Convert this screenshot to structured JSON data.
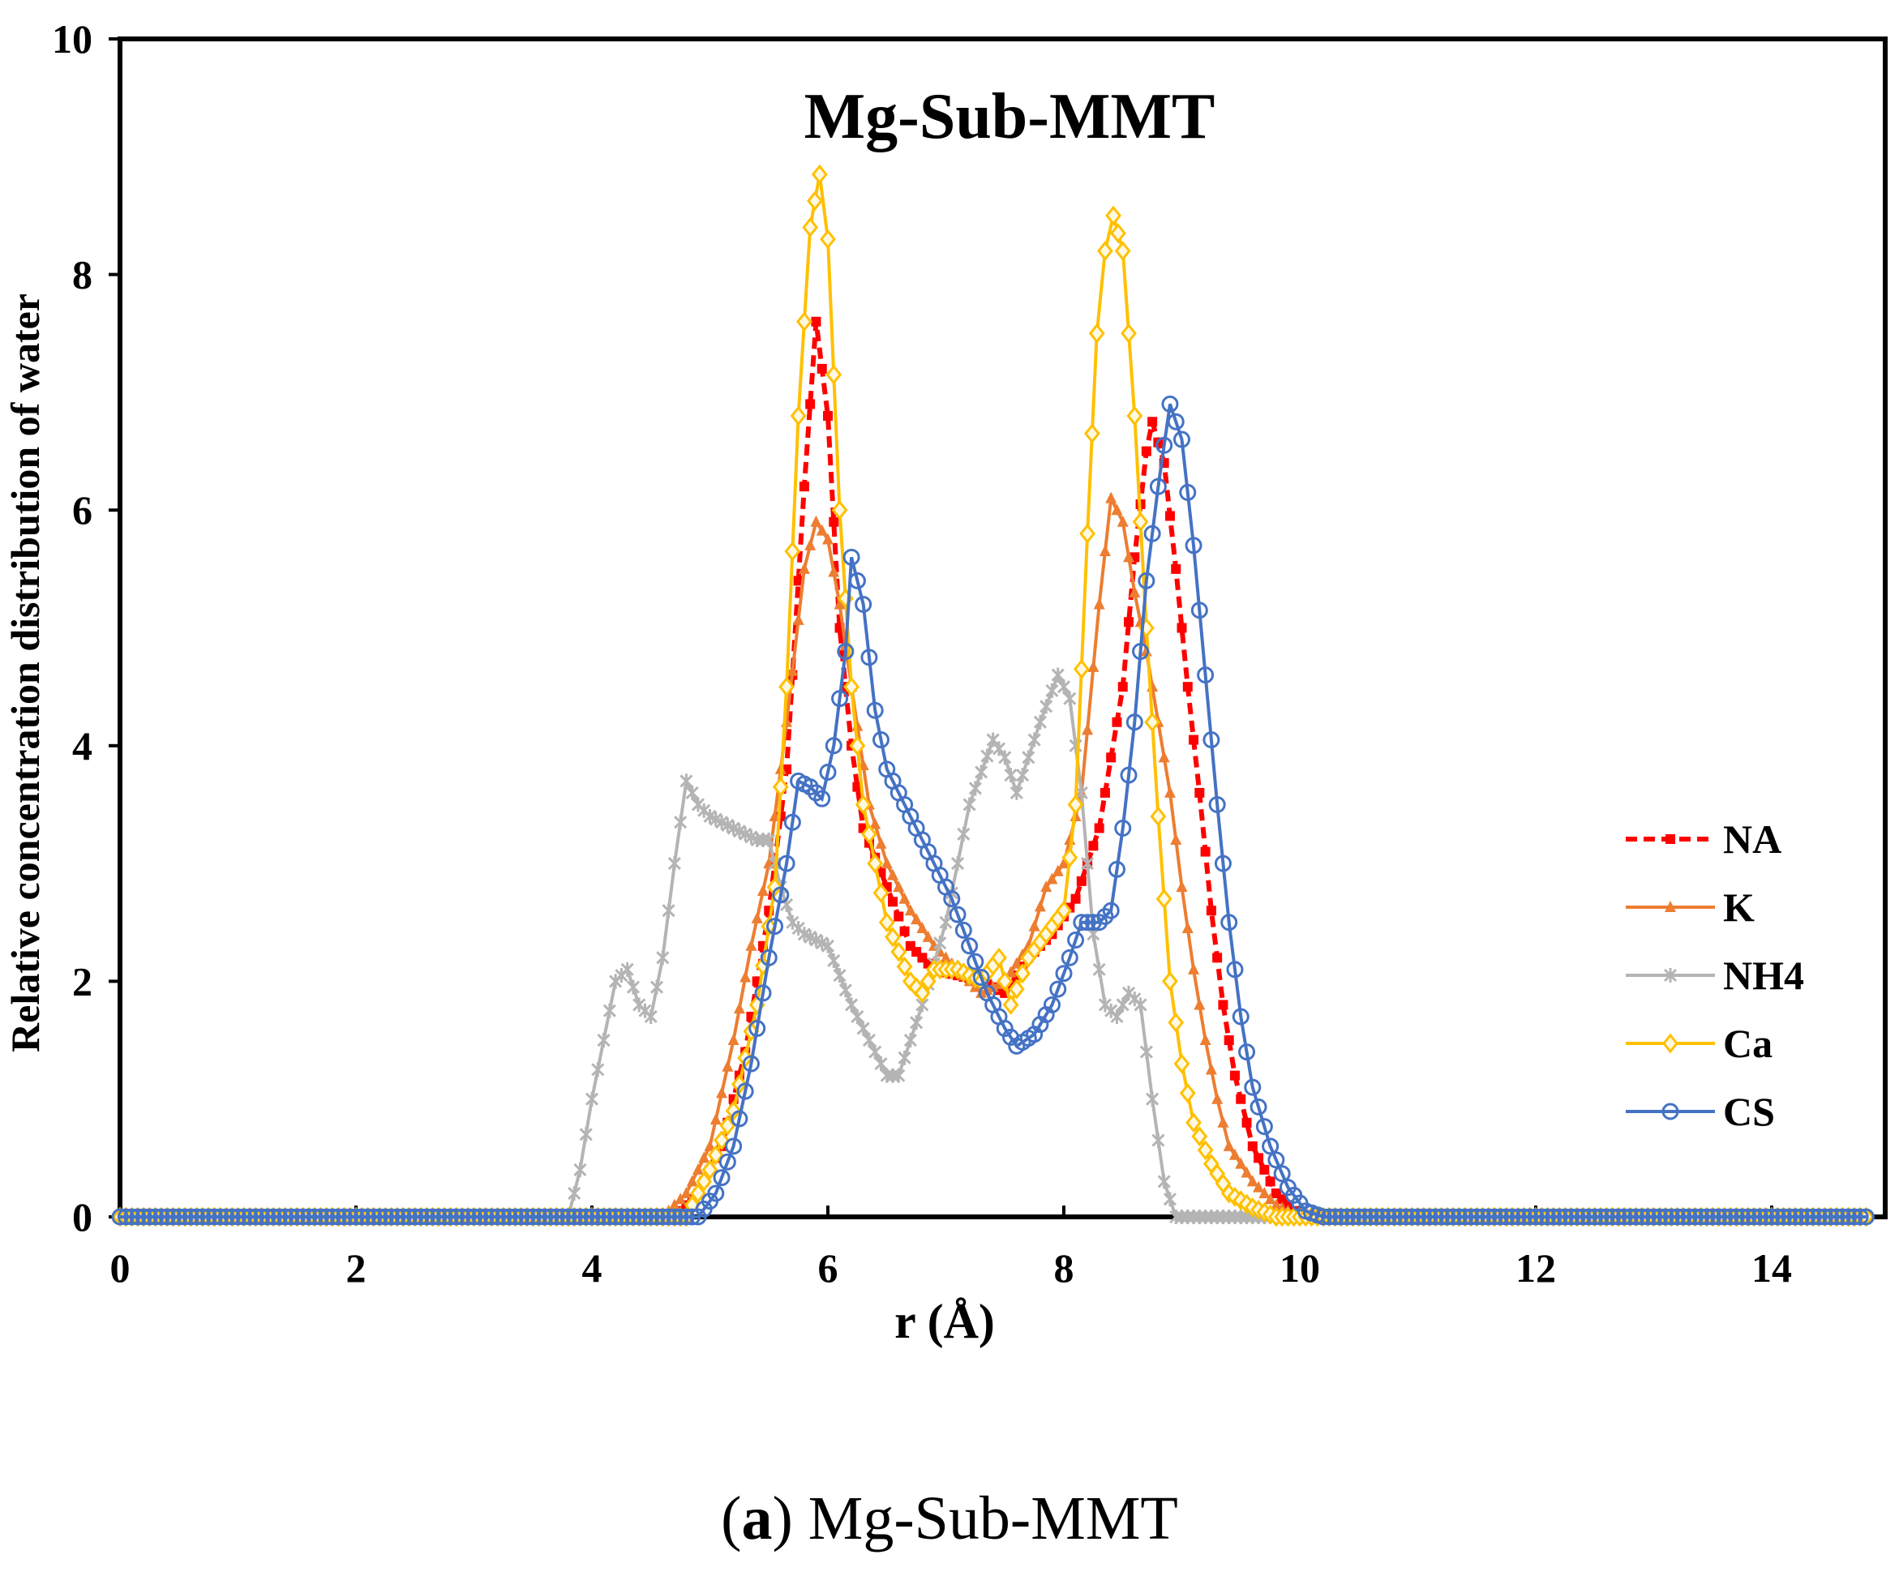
{
  "chart_data": {
    "type": "line",
    "title": "Mg-Sub-MMT",
    "xlabel": "r  (Å)",
    "ylabel": "Relative concentration distribution  of water",
    "xlim": [
      0,
      14.8
    ],
    "ylim": [
      0,
      10
    ],
    "xticks": [
      0,
      2,
      4,
      6,
      8,
      10,
      12,
      14
    ],
    "yticks": [
      0,
      2,
      4,
      6,
      8,
      10
    ],
    "grid": false,
    "legend_position": "right",
    "series": [
      {
        "name": "NA",
        "color": "#ff0000",
        "dash": true,
        "marker": "square",
        "points": [
          [
            0,
            0
          ],
          [
            4.7,
            0
          ],
          [
            4.9,
            0.2
          ],
          [
            5.1,
            0.6
          ],
          [
            5.3,
            1.4
          ],
          [
            5.5,
            2.6
          ],
          [
            5.65,
            3.8
          ],
          [
            5.8,
            6.2
          ],
          [
            5.9,
            7.6
          ],
          [
            6.0,
            6.8
          ],
          [
            6.1,
            5.0
          ],
          [
            6.2,
            4.0
          ],
          [
            6.3,
            3.3
          ],
          [
            6.5,
            2.8
          ],
          [
            6.7,
            2.3
          ],
          [
            6.9,
            2.1
          ],
          [
            7.1,
            2.05
          ],
          [
            7.3,
            2.0
          ],
          [
            7.5,
            1.9
          ],
          [
            7.7,
            2.2
          ],
          [
            7.9,
            2.4
          ],
          [
            8.1,
            2.7
          ],
          [
            8.3,
            3.3
          ],
          [
            8.5,
            4.5
          ],
          [
            8.6,
            5.6
          ],
          [
            8.7,
            6.5
          ],
          [
            8.75,
            6.75
          ],
          [
            8.85,
            6.4
          ],
          [
            8.95,
            5.5
          ],
          [
            9.05,
            4.5
          ],
          [
            9.15,
            3.6
          ],
          [
            9.25,
            2.6
          ],
          [
            9.35,
            1.8
          ],
          [
            9.45,
            1.2
          ],
          [
            9.6,
            0.6
          ],
          [
            9.8,
            0.2
          ],
          [
            10.0,
            0
          ],
          [
            14.8,
            0
          ]
        ]
      },
      {
        "name": "K",
        "color": "#ed7d31",
        "dash": false,
        "marker": "triangle",
        "points": [
          [
            0,
            0
          ],
          [
            4.6,
            0
          ],
          [
            4.8,
            0.2
          ],
          [
            5.0,
            0.6
          ],
          [
            5.2,
            1.5
          ],
          [
            5.35,
            2.3
          ],
          [
            5.5,
            3.0
          ],
          [
            5.65,
            4.2
          ],
          [
            5.8,
            5.5
          ],
          [
            5.9,
            5.9
          ],
          [
            6.0,
            5.75
          ],
          [
            6.1,
            5.2
          ],
          [
            6.2,
            4.5
          ],
          [
            6.35,
            3.5
          ],
          [
            6.5,
            3.0
          ],
          [
            6.7,
            2.6
          ],
          [
            6.9,
            2.3
          ],
          [
            7.1,
            2.1
          ],
          [
            7.3,
            1.9
          ],
          [
            7.5,
            2.0
          ],
          [
            7.7,
            2.3
          ],
          [
            7.85,
            2.8
          ],
          [
            8.0,
            3.0
          ],
          [
            8.15,
            3.6
          ],
          [
            8.3,
            5.2
          ],
          [
            8.4,
            6.1
          ],
          [
            8.5,
            5.9
          ],
          [
            8.6,
            5.3
          ],
          [
            8.7,
            4.8
          ],
          [
            8.8,
            4.2
          ],
          [
            8.9,
            3.6
          ],
          [
            9.0,
            2.8
          ],
          [
            9.1,
            2.1
          ],
          [
            9.2,
            1.5
          ],
          [
            9.3,
            1.0
          ],
          [
            9.4,
            0.6
          ],
          [
            9.6,
            0.3
          ],
          [
            9.8,
            0.1
          ],
          [
            10.0,
            0
          ],
          [
            14.8,
            0
          ]
        ]
      },
      {
        "name": "NH4",
        "color": "#b4b4b4",
        "dash": false,
        "marker": "star",
        "points": [
          [
            0,
            0
          ],
          [
            3.8,
            0
          ],
          [
            3.9,
            0.4
          ],
          [
            4.0,
            1.0
          ],
          [
            4.1,
            1.5
          ],
          [
            4.2,
            2.0
          ],
          [
            4.3,
            2.1
          ],
          [
            4.4,
            1.8
          ],
          [
            4.5,
            1.7
          ],
          [
            4.6,
            2.2
          ],
          [
            4.7,
            3.0
          ],
          [
            4.8,
            3.7
          ],
          [
            4.9,
            3.5
          ],
          [
            5.0,
            3.4
          ],
          [
            5.2,
            3.3
          ],
          [
            5.4,
            3.2
          ],
          [
            5.5,
            3.2
          ],
          [
            5.6,
            2.8
          ],
          [
            5.7,
            2.5
          ],
          [
            5.8,
            2.4
          ],
          [
            6.0,
            2.3
          ],
          [
            6.2,
            1.8
          ],
          [
            6.4,
            1.4
          ],
          [
            6.5,
            1.2
          ],
          [
            6.6,
            1.2
          ],
          [
            6.8,
            1.8
          ],
          [
            7.0,
            2.5
          ],
          [
            7.2,
            3.5
          ],
          [
            7.4,
            4.05
          ],
          [
            7.5,
            3.9
          ],
          [
            7.6,
            3.6
          ],
          [
            7.8,
            4.2
          ],
          [
            7.95,
            4.6
          ],
          [
            8.05,
            4.4
          ],
          [
            8.15,
            3.6
          ],
          [
            8.25,
            2.4
          ],
          [
            8.35,
            1.8
          ],
          [
            8.45,
            1.7
          ],
          [
            8.55,
            1.9
          ],
          [
            8.65,
            1.8
          ],
          [
            8.75,
            1.0
          ],
          [
            8.85,
            0.3
          ],
          [
            8.95,
            0
          ],
          [
            14.8,
            0
          ]
        ]
      },
      {
        "name": "Ca",
        "color": "#ffc000",
        "dash": false,
        "marker": "diamond",
        "points": [
          [
            0,
            0
          ],
          [
            4.8,
            0
          ],
          [
            5.0,
            0.4
          ],
          [
            5.2,
            0.9
          ],
          [
            5.4,
            1.8
          ],
          [
            5.55,
            2.8
          ],
          [
            5.65,
            4.5
          ],
          [
            5.75,
            6.8
          ],
          [
            5.85,
            8.4
          ],
          [
            5.93,
            8.85
          ],
          [
            6.0,
            8.3
          ],
          [
            6.1,
            6.0
          ],
          [
            6.2,
            4.5
          ],
          [
            6.3,
            3.5
          ],
          [
            6.5,
            2.5
          ],
          [
            6.7,
            2.0
          ],
          [
            6.8,
            1.9
          ],
          [
            6.9,
            2.1
          ],
          [
            7.1,
            2.1
          ],
          [
            7.3,
            2.0
          ],
          [
            7.45,
            2.2
          ],
          [
            7.55,
            1.8
          ],
          [
            7.7,
            2.2
          ],
          [
            7.85,
            2.4
          ],
          [
            8.0,
            2.6
          ],
          [
            8.1,
            3.5
          ],
          [
            8.2,
            5.8
          ],
          [
            8.28,
            7.5
          ],
          [
            8.35,
            8.2
          ],
          [
            8.42,
            8.5
          ],
          [
            8.5,
            8.2
          ],
          [
            8.6,
            6.8
          ],
          [
            8.7,
            5.0
          ],
          [
            8.8,
            3.4
          ],
          [
            8.9,
            2.0
          ],
          [
            9.0,
            1.3
          ],
          [
            9.1,
            0.8
          ],
          [
            9.25,
            0.45
          ],
          [
            9.4,
            0.2
          ],
          [
            9.6,
            0.08
          ],
          [
            9.8,
            0
          ],
          [
            14.8,
            0
          ]
        ]
      },
      {
        "name": "CS",
        "color": "#4472c4",
        "dash": false,
        "marker": "circle",
        "points": [
          [
            0,
            0
          ],
          [
            4.9,
            0
          ],
          [
            5.05,
            0.2
          ],
          [
            5.2,
            0.6
          ],
          [
            5.35,
            1.3
          ],
          [
            5.5,
            2.2
          ],
          [
            5.65,
            3.0
          ],
          [
            5.75,
            3.7
          ],
          [
            5.85,
            3.65
          ],
          [
            5.95,
            3.55
          ],
          [
            6.05,
            4.0
          ],
          [
            6.15,
            4.8
          ],
          [
            6.2,
            5.6
          ],
          [
            6.3,
            5.2
          ],
          [
            6.4,
            4.3
          ],
          [
            6.5,
            3.8
          ],
          [
            6.6,
            3.6
          ],
          [
            6.75,
            3.3
          ],
          [
            6.9,
            3.0
          ],
          [
            7.05,
            2.7
          ],
          [
            7.2,
            2.3
          ],
          [
            7.35,
            1.9
          ],
          [
            7.5,
            1.6
          ],
          [
            7.6,
            1.45
          ],
          [
            7.75,
            1.55
          ],
          [
            7.9,
            1.8
          ],
          [
            8.05,
            2.2
          ],
          [
            8.15,
            2.5
          ],
          [
            8.3,
            2.5
          ],
          [
            8.4,
            2.6
          ],
          [
            8.5,
            3.3
          ],
          [
            8.6,
            4.2
          ],
          [
            8.7,
            5.4
          ],
          [
            8.8,
            6.2
          ],
          [
            8.9,
            6.9
          ],
          [
            9.0,
            6.6
          ],
          [
            9.1,
            5.7
          ],
          [
            9.2,
            4.6
          ],
          [
            9.3,
            3.5
          ],
          [
            9.4,
            2.5
          ],
          [
            9.5,
            1.7
          ],
          [
            9.6,
            1.1
          ],
          [
            9.75,
            0.6
          ],
          [
            9.9,
            0.25
          ],
          [
            10.05,
            0.05
          ],
          [
            10.2,
            0
          ],
          [
            14.8,
            0
          ]
        ]
      }
    ]
  },
  "caption": {
    "letter": "a",
    "text": "Mg-Sub-MMT"
  }
}
